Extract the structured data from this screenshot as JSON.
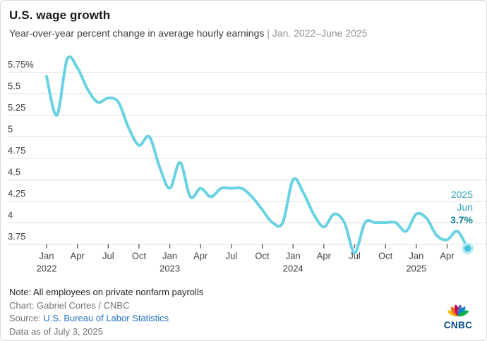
{
  "header": {
    "title": "U.S. wage growth",
    "subtitle_main": "Year-over-year percent change in average hourly earnings ",
    "subtitle_range": "| Jan. 2022–June 2025"
  },
  "chart_data": {
    "type": "line",
    "title": "U.S. wage growth",
    "series_name": "Year-over-year percent change in average hourly earnings",
    "categories": [
      "Jan 2022",
      "Feb 2022",
      "Mar 2022",
      "Apr 2022",
      "May 2022",
      "Jun 2022",
      "Jul 2022",
      "Aug 2022",
      "Sep 2022",
      "Oct 2022",
      "Nov 2022",
      "Dec 2022",
      "Jan 2023",
      "Feb 2023",
      "Mar 2023",
      "Apr 2023",
      "May 2023",
      "Jun 2023",
      "Jul 2023",
      "Aug 2023",
      "Sep 2023",
      "Oct 2023",
      "Nov 2023",
      "Dec 2023",
      "Jan 2024",
      "Feb 2024",
      "Mar 2024",
      "Apr 2024",
      "May 2024",
      "Jun 2024",
      "Jul 2024",
      "Aug 2024",
      "Sep 2024",
      "Oct 2024",
      "Nov 2024",
      "Dec 2024",
      "Jan 2025",
      "Feb 2025",
      "Mar 2025",
      "Apr 2025",
      "May 2025",
      "Jun 2025"
    ],
    "values": [
      5.7,
      5.25,
      5.9,
      5.8,
      5.55,
      5.4,
      5.45,
      5.4,
      5.1,
      4.9,
      5.0,
      4.65,
      4.4,
      4.7,
      4.3,
      4.4,
      4.3,
      4.4,
      4.4,
      4.4,
      4.3,
      4.15,
      4.0,
      4.0,
      4.5,
      4.35,
      4.1,
      3.95,
      4.1,
      4.0,
      3.65,
      4.0,
      4.0,
      4.0,
      4.0,
      3.9,
      4.1,
      4.05,
      3.85,
      3.8,
      3.9,
      3.7
    ],
    "ylim": [
      3.75,
      5.75
    ],
    "y_tick_values": [
      5.75,
      5.5,
      5.25,
      5.0,
      4.75,
      4.5,
      4.25,
      4.0,
      3.75
    ],
    "y_tick_labels": [
      "5.75%",
      "5.5",
      "5.25",
      "5",
      "4.75",
      "4.5",
      "4.25",
      "4",
      "3.75"
    ],
    "x_tick_every": 3,
    "grid": true,
    "annotation": {
      "year": "2025",
      "month": "Jun",
      "value": "3.7%"
    },
    "colors": {
      "line": "#69d2e2",
      "dot_inner": "#41c2da",
      "dot_halo": "#b4e8f2",
      "annotation_light": "#2aa4ba",
      "annotation_bold": "#0e7e93",
      "gridline": "#e0e0e0",
      "tick": "#4a4a4a",
      "axis_label": "#3d4045"
    }
  },
  "footer": {
    "note": "Note: All employees on private nonfarm payrolls",
    "credit": "Chart: Gabriel Cortes / CNBC",
    "source_prefix": "Source: ",
    "source_link": "U.S. Bureau of Labor Statistics",
    "data_as_of": "Data as of July 3, 2025"
  },
  "logo": {
    "wordmark": "CNBC",
    "wordmark_color": "#004a8b",
    "feather_colors": [
      "#FCB711",
      "#F37021",
      "#CC004C",
      "#6460AA",
      "#0089D0",
      "#0DB14B"
    ]
  }
}
